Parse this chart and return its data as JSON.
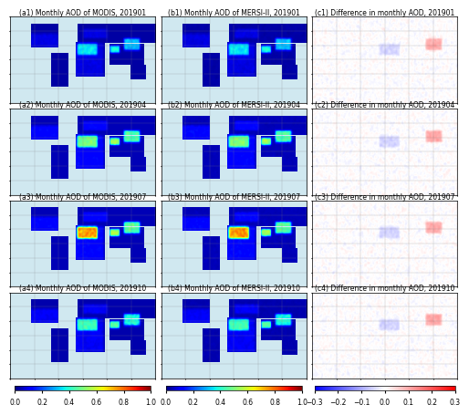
{
  "rows": 4,
  "cols": 3,
  "panel_titles": [
    [
      "(a1) Monthly AOD of MODIS, 201901",
      "(b1) Monthly AOD of MERSI-II, 201901",
      "(c1) Difference in monthly AOD, 201901"
    ],
    [
      "(a2) Monthly AOD of MODIS, 201904",
      "(b2) Monthly AOD of MERSI-II, 201904",
      "(c2) Difference in monthly AOD, 201904"
    ],
    [
      "(a3) Monthly AOD of MODIS, 201907",
      "(b3) Monthly AOD of MERSI-II, 201907",
      "(c3) Difference in monthly AOD, 201907"
    ],
    [
      "(a4) Monthly AOD of MODIS, 201910",
      "(b4) Monthly AOD of MERSI-II, 201910",
      "(c4) Difference in monthly AOD, 201910"
    ]
  ],
  "cmap_aod": "jet",
  "cmap_diff": "bwr",
  "vmin_aod": 0.0,
  "vmax_aod": 1.0,
  "vmin_diff": -0.3,
  "vmax_diff": 0.3,
  "colorbar_ticks_aod": [
    0.0,
    0.2,
    0.4,
    0.6,
    0.8,
    1.0
  ],
  "colorbar_ticks_diff": [
    -0.3,
    -0.2,
    -0.1,
    0.0,
    0.1,
    0.2,
    0.3
  ],
  "title_fontsize": 5.5,
  "tick_fontsize": 5.5,
  "background_color": "#d0e8f0",
  "land_color": "#f5f5f5",
  "ocean_color": "#d0e8f0"
}
